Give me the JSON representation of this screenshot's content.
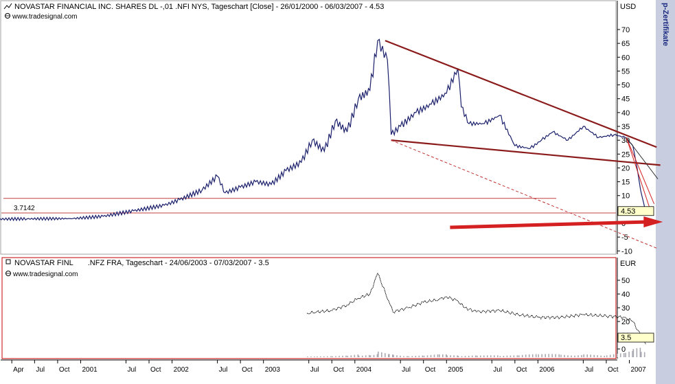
{
  "colors": {
    "price_line": "#1a1f6b",
    "trend_lines": "#8b1a1a",
    "red": "#d42020",
    "panel_border": "#c00000",
    "right_strip": "#c8cde0",
    "value_box": "#ffffcc"
  },
  "watermark": "www.tradesignal.com",
  "side_text": "p-Zertifikate",
  "panel_top": {
    "title": "NOVASTAR FINANCIAL INC. SHARES DL -,01 .NFI NYS, Tageschart [Close] - 26/01/2000 - 06/03/2007 - 4.53",
    "currency": "USD",
    "last_value": "4.53",
    "support_label": "3.7142",
    "y_ticks": [
      "70",
      "65",
      "60",
      "55",
      "50",
      "45",
      "40",
      "35",
      "30",
      "25",
      "20",
      "15",
      "10",
      "5",
      "0",
      "-5",
      "-10"
    ]
  },
  "panel_bottom": {
    "title": "NOVASTAR FINL       .NFZ FRA, Tageschart - 24/06/2003 - 07/03/2007 - 3.5",
    "currency": "EUR",
    "last_value": "3.5",
    "y_ticks": [
      "50",
      "40",
      "30",
      "20",
      "10",
      "0"
    ]
  },
  "x_axis": {
    "labels": [
      "Apr",
      "Jul",
      "Oct",
      "2001",
      "Jul",
      "Oct",
      "2002",
      "Jul",
      "Oct",
      "2003",
      "Jul",
      "Oct",
      "2004",
      "Jul",
      "Oct",
      "2005",
      "Jul",
      "Oct",
      "2006",
      "Jul",
      "Oct",
      "2007"
    ],
    "dates": [
      "2000-04-01",
      "2000-07-01",
      "2000-10-01",
      "2001-01-01",
      "2001-07-01",
      "2001-10-01",
      "2002-01-01",
      "2002-07-01",
      "2002-10-01",
      "2003-01-01",
      "2003-07-01",
      "2003-10-01",
      "2004-01-01",
      "2004-07-01",
      "2004-10-01",
      "2005-01-01",
      "2005-07-01",
      "2005-10-01",
      "2006-01-01",
      "2006-07-01",
      "2006-10-01",
      "2007-01-01"
    ]
  },
  "chart_data": [
    {
      "type": "line",
      "title": "NOVASTAR FINANCIAL INC. SHARES DL -,01 .NFI NYS, Tageschart [Close] - 26/01/2000 - 06/03/2007 - 4.53",
      "ylabel": "USD",
      "ylim": [
        -10,
        70
      ],
      "grid": false,
      "x": [
        "2000-01-26",
        "2000-06-01",
        "2000-12-01",
        "2001-04-01",
        "2001-08-01",
        "2001-12-01",
        "2002-02-01",
        "2002-05-01",
        "2002-07-01",
        "2002-08-01",
        "2002-10-01",
        "2002-12-01",
        "2003-02-01",
        "2003-04-01",
        "2003-06-01",
        "2003-07-15",
        "2003-09-01",
        "2003-10-15",
        "2003-12-01",
        "2004-01-15",
        "2004-03-01",
        "2004-04-01",
        "2004-05-10",
        "2004-05-25",
        "2004-07-01",
        "2004-09-01",
        "2004-11-01",
        "2005-01-01",
        "2005-02-15",
        "2005-03-01",
        "2005-04-01",
        "2005-06-01",
        "2005-08-01",
        "2005-10-01",
        "2005-12-01",
        "2006-01-15",
        "2006-03-01",
        "2006-05-01",
        "2006-07-01",
        "2006-09-01",
        "2006-11-01",
        "2006-12-15",
        "2007-01-15",
        "2007-02-01",
        "2007-02-15",
        "2007-03-06"
      ],
      "values": [
        1.5,
        1.6,
        1.7,
        2.5,
        4.5,
        6.5,
        8.5,
        12,
        17,
        11,
        13,
        15,
        14,
        19,
        22,
        30,
        26,
        37,
        33,
        45,
        48,
        66,
        59,
        32,
        35,
        40,
        43,
        47,
        56,
        42,
        36,
        36,
        39,
        28,
        27,
        30,
        33,
        30,
        35,
        31,
        32,
        31,
        28,
        20,
        12,
        4.53
      ],
      "support_level": 3.7142,
      "resistance_level": 9,
      "trendlines": [
        {
          "name": "upper",
          "from": [
            "2004-05-01",
            66
          ],
          "to": [
            "2007-04-20",
            27.5
          ]
        },
        {
          "name": "lower",
          "from": [
            "2004-05-25",
            30
          ],
          "to": [
            "2007-05-05",
            21
          ]
        },
        {
          "name": "lower-dashed",
          "from": [
            "2004-05-25",
            30
          ],
          "to": [
            "2007-04-20",
            -9
          ]
        }
      ],
      "annotation_arrow": {
        "from": [
          "2005-01-15",
          -1.5
        ],
        "to": [
          "2007-05-15",
          0.5
        ]
      }
    },
    {
      "type": "line",
      "title": "NOVASTAR FINL       .NFZ FRA, Tageschart - 24/06/2003 - 07/03/2007 - 3.5",
      "ylabel": "EUR",
      "ylim": [
        -2,
        58
      ],
      "grid": false,
      "x": [
        "2003-06-24",
        "2003-08-01",
        "2003-10-01",
        "2003-12-01",
        "2004-01-15",
        "2004-03-01",
        "2004-04-01",
        "2004-05-15",
        "2004-06-01",
        "2004-08-01",
        "2004-10-01",
        "2004-12-01",
        "2005-01-01",
        "2005-02-15",
        "2005-03-15",
        "2005-05-01",
        "2005-08-01",
        "2005-10-15",
        "2006-01-01",
        "2006-04-01",
        "2006-07-01",
        "2006-10-01",
        "2006-12-15",
        "2007-01-15",
        "2007-02-15",
        "2007-03-07"
      ],
      "values": [
        26,
        27,
        28,
        32,
        37,
        40,
        55,
        35,
        27,
        30,
        34,
        36,
        38,
        35,
        30,
        27,
        28,
        25,
        23,
        23,
        25,
        24,
        23,
        20,
        10,
        3.5
      ],
      "volume": [
        0.1,
        0.1,
        0.2,
        0.2,
        0.3,
        0.3,
        0.6,
        0.4,
        0.3,
        0.2,
        0.2,
        0.3,
        0.3,
        0.2,
        0.2,
        0.2,
        0.2,
        0.2,
        0.4,
        0.3,
        0.3,
        0.2,
        0.5,
        0.9,
        1.0,
        0.7
      ]
    }
  ]
}
